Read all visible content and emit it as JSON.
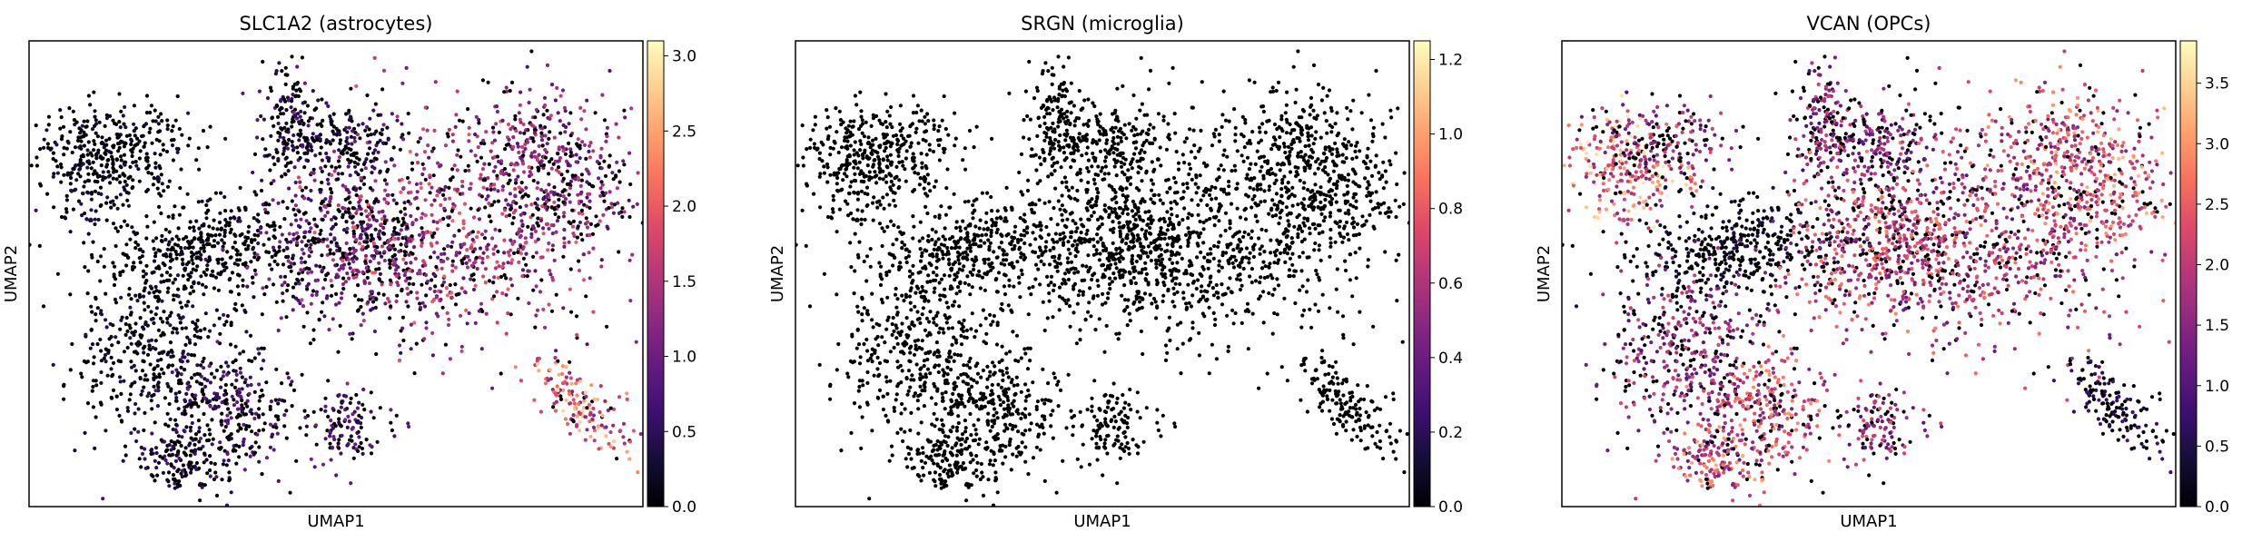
{
  "colormap": "magma",
  "marker_color": "#000000",
  "chart_data": [
    {
      "type": "scatter",
      "title": "SLC1A2 (astrocytes)",
      "xlabel": "UMAP1",
      "ylabel": "UMAP2",
      "color_range": [
        0,
        3.1
      ],
      "colorbar_ticks": [
        0.0,
        0.5,
        1.0,
        1.5,
        2.0,
        2.5,
        3.0
      ],
      "expression": {
        "SE": 0.5,
        "tall_peak": 0.6,
        "top_mid": 0.55,
        "central": 0.9,
        "big_right": 1.45,
        "right_band": 1.2,
        "left_top": 0.35,
        "left_mid": 0.25,
        "central_left": 0.2,
        "left_lower": 0.35,
        "bottom_mid": 0.7,
        "bottom_right": 0.75,
        "isolated_right": 2.0
      }
    },
    {
      "type": "scatter",
      "title": "SRGN (microglia)",
      "xlabel": "UMAP1",
      "ylabel": "UMAP2",
      "color_range": [
        0,
        1.25
      ],
      "colorbar_ticks": [
        0.0,
        0.2,
        0.4,
        0.6,
        0.8,
        1.0,
        1.2
      ],
      "expression": {
        "SE": 0.0,
        "tall_peak": 0.0,
        "top_mid": 0.0,
        "central": 0.0,
        "big_right": 0.0,
        "right_band": 0.0,
        "left_top": 0.0,
        "left_mid": 0.0,
        "central_left": 0.0,
        "left_lower": 0.0,
        "bottom_mid": 0.0,
        "bottom_right": 0.0,
        "isolated_right": 0.0
      }
    },
    {
      "type": "scatter",
      "title": "VCAN (OPCs)",
      "xlabel": "UMAP1",
      "ylabel": "UMAP2",
      "color_range": [
        0,
        3.85
      ],
      "colorbar_ticks": [
        0.0,
        0.5,
        1.0,
        1.5,
        2.0,
        2.5,
        3.0,
        3.5
      ],
      "expression": {
        "SE": 2.2,
        "tall_peak": 1.5,
        "top_mid": 1.4,
        "central": 2.0,
        "big_right": 1.9,
        "right_band": 2.3,
        "left_top": 2.6,
        "left_mid": 1.5,
        "central_left": 0.4,
        "left_lower": 1.6,
        "bottom_mid": 2.1,
        "bottom_right": 1.7,
        "isolated_right": 0.6
      }
    }
  ]
}
